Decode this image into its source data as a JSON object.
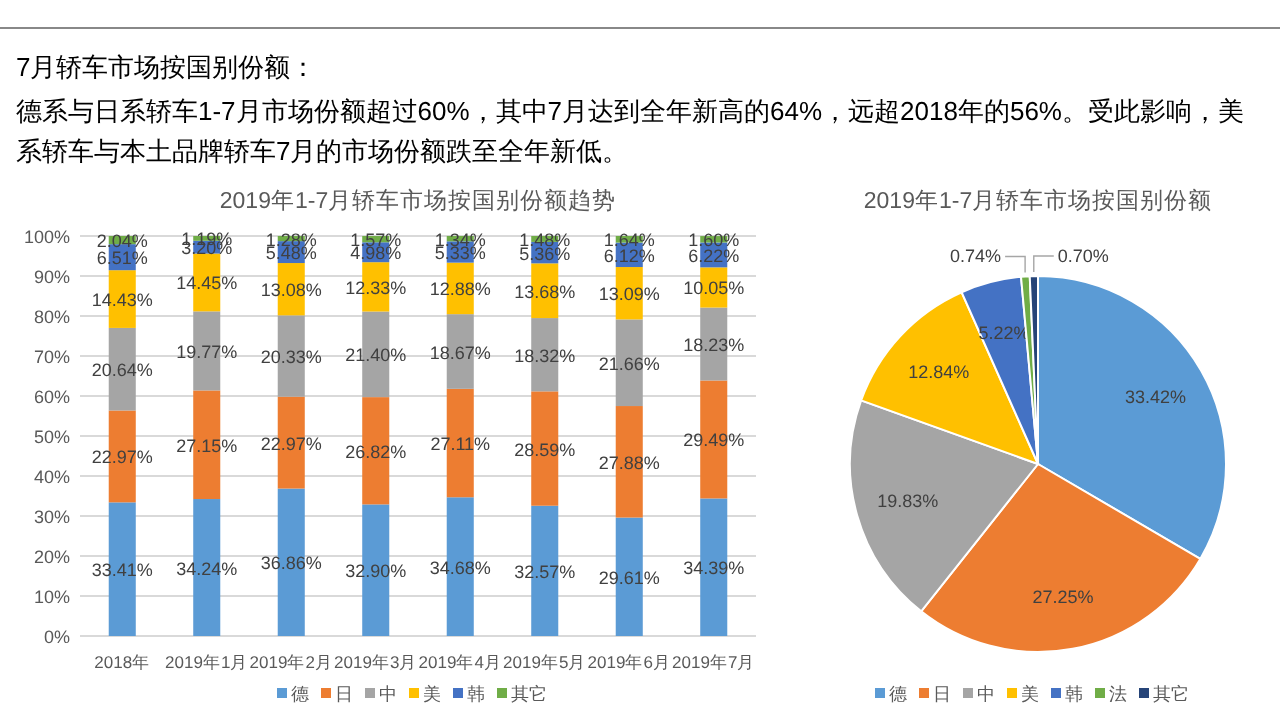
{
  "chart_data": [
    {
      "type": "other",
      "title": "7月轿车市场按国别份额：",
      "annotations": [
        "德系与日系轿车1-7月市场份额超过60%，其中7月达到全年新高的64%，远超2018年的56%。受此影响，美系轿车与本土品牌轿车7月的市场份额跌至全年新低。"
      ]
    },
    {
      "type": "bar",
      "stacked": true,
      "title": "2019年1-7月轿车市场按国别份额趋势",
      "categories": [
        "2018年",
        "2019年1月",
        "2019年2月",
        "2019年3月",
        "2019年4月",
        "2019年5月",
        "2019年6月",
        "2019年7月"
      ],
      "ylim": [
        0,
        100
      ],
      "yticks": [
        {
          "value": 0,
          "label": "0%"
        },
        {
          "value": 10,
          "label": "10%"
        },
        {
          "value": 20,
          "label": "20%"
        },
        {
          "value": 30,
          "label": "30%"
        },
        {
          "value": 40,
          "label": "40%"
        },
        {
          "value": 50,
          "label": "50%"
        },
        {
          "value": 60,
          "label": "60%"
        },
        {
          "value": 70,
          "label": "70%"
        },
        {
          "value": 80,
          "label": "80%"
        },
        {
          "value": 90,
          "label": "90%"
        },
        {
          "value": 100,
          "label": "100%"
        }
      ],
      "grid": "y",
      "legend": "bottom",
      "series": [
        {
          "name": "德",
          "color": "#5b9bd5",
          "values": [
            33.41,
            34.24,
            36.86,
            32.9,
            34.68,
            32.57,
            29.61,
            34.39
          ],
          "value_labels": [
            "33.41%",
            "34.24%",
            "36.86%",
            "32.90%",
            "34.68%",
            "32.57%",
            "29.61%",
            "34.39%"
          ]
        },
        {
          "name": "日",
          "color": "#ed7d31",
          "values": [
            22.97,
            27.15,
            22.97,
            26.82,
            27.11,
            28.59,
            27.88,
            29.49
          ],
          "value_labels": [
            "22.97%",
            "27.15%",
            "22.97%",
            "26.82%",
            "27.11%",
            "28.59%",
            "27.88%",
            "29.49%"
          ]
        },
        {
          "name": "中",
          "color": "#a5a5a5",
          "values": [
            20.64,
            19.77,
            20.33,
            21.4,
            18.67,
            18.32,
            21.66,
            18.23
          ],
          "value_labels": [
            "20.64%",
            "19.77%",
            "20.33%",
            "21.40%",
            "18.67%",
            "18.32%",
            "21.66%",
            "18.23%"
          ]
        },
        {
          "name": "美",
          "color": "#ffc000",
          "values": [
            14.43,
            14.45,
            13.08,
            12.33,
            12.88,
            13.68,
            13.09,
            10.05
          ],
          "value_labels": [
            "14.43%",
            "14.45%",
            "13.08%",
            "12.33%",
            "12.88%",
            "13.68%",
            "13.09%",
            "10.05%"
          ]
        },
        {
          "name": "韩",
          "color": "#4472c4",
          "values": [
            6.51,
            3.2,
            5.48,
            4.98,
            5.33,
            5.36,
            6.12,
            6.22
          ],
          "value_labels": [
            "6.51%",
            "3.20%",
            "5.48%",
            "4.98%",
            "5.33%",
            "5.36%",
            "6.12%",
            "6.22%"
          ]
        },
        {
          "name": "其它",
          "color": "#70ad47",
          "values": [
            2.04,
            1.19,
            1.28,
            1.57,
            1.34,
            1.48,
            1.64,
            1.6
          ],
          "value_labels": [
            "2.04%",
            "1.19%",
            "1.28%",
            "1.57%",
            "1.34%",
            "1.48%",
            "1.64%",
            "1.60%"
          ]
        }
      ]
    },
    {
      "type": "pie",
      "title": "2019年1-7月轿车市场按国别份额",
      "categories": [
        "德",
        "日",
        "中",
        "美",
        "韩",
        "法",
        "其它"
      ],
      "values": [
        33.42,
        27.25,
        19.83,
        12.84,
        5.22,
        0.74,
        0.7
      ],
      "colors": [
        "#5b9bd5",
        "#ed7d31",
        "#a5a5a5",
        "#ffc000",
        "#4472c4",
        "#70ad47",
        "#264478"
      ],
      "value_labels": [
        "33.42%",
        "27.25%",
        "19.83%",
        "12.84%",
        "5.22%",
        "0.74%",
        "0.70%"
      ],
      "legend": "bottom"
    }
  ]
}
